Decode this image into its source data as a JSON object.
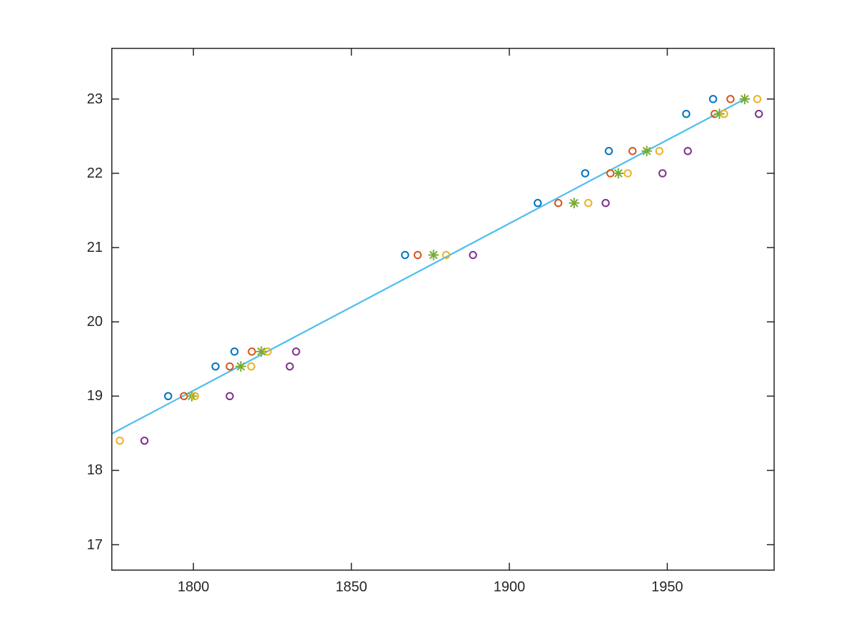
{
  "figure": {
    "background": "#ffffff",
    "title": ""
  },
  "chart_data": {
    "type": "scatter",
    "title": "",
    "xlabel": "",
    "ylabel": "",
    "xlim": [
      1774,
      1984
    ],
    "ylim": [
      16.65,
      23.69
    ],
    "xticks": [
      "1800",
      "1850",
      "1900",
      "1950"
    ],
    "xtick_values": [
      1800,
      1850,
      1900,
      1950
    ],
    "yticks": [
      "17",
      "18",
      "19",
      "20",
      "21",
      "22",
      "23"
    ],
    "ytick_values": [
      17,
      18,
      19,
      20,
      21,
      22,
      23
    ],
    "grid": false,
    "legend_position": "none",
    "axis_color": "#262626",
    "tick_length": 11,
    "y_levels": [
      18.4,
      19.0,
      19.4,
      19.6,
      20.9,
      21.6,
      22.0,
      22.3,
      22.8,
      23.0
    ],
    "series": [
      {
        "name": "series-1-blue-circles",
        "color": "#0072BD",
        "marker": "circle",
        "points": [
          [
            1792,
            19.0
          ],
          [
            1807,
            19.4
          ],
          [
            1813,
            19.6
          ],
          [
            1867,
            20.9
          ],
          [
            1909,
            21.6
          ],
          [
            1924,
            22.0
          ],
          [
            1931.5,
            22.3
          ],
          [
            1956,
            22.8
          ],
          [
            1964.5,
            23.0
          ]
        ]
      },
      {
        "name": "series-2-orange-circles",
        "color": "#D95319",
        "marker": "circle",
        "points": [
          [
            1797,
            19.0
          ],
          [
            1811.5,
            19.4
          ],
          [
            1818.5,
            19.6
          ],
          [
            1871,
            20.9
          ],
          [
            1915.5,
            21.6
          ],
          [
            1932,
            22.0
          ],
          [
            1939,
            22.3
          ],
          [
            1965,
            22.8
          ],
          [
            1970,
            23.0
          ]
        ]
      },
      {
        "name": "series-3-green-asterisks",
        "color": "#77AC30",
        "marker": "asterisk",
        "points": [
          [
            1799.5,
            19.0
          ],
          [
            1815,
            19.4
          ],
          [
            1821.5,
            19.6
          ],
          [
            1876,
            20.9
          ],
          [
            1920.5,
            21.6
          ],
          [
            1934.5,
            22.0
          ],
          [
            1943.5,
            22.3
          ],
          [
            1966.5,
            22.8
          ],
          [
            1974.5,
            23.0
          ]
        ]
      },
      {
        "name": "series-4-yellow-circles",
        "color": "#EDB120",
        "marker": "circle",
        "points": [
          [
            1776.7,
            18.4
          ],
          [
            1800.5,
            19.0
          ],
          [
            1818.3,
            19.4
          ],
          [
            1823.5,
            19.6
          ],
          [
            1880,
            20.9
          ],
          [
            1925,
            21.6
          ],
          [
            1937.5,
            22.0
          ],
          [
            1947.5,
            22.3
          ],
          [
            1968,
            22.8
          ],
          [
            1978.5,
            23.0
          ]
        ]
      },
      {
        "name": "series-5-purple-circles",
        "color": "#7E2F8E",
        "marker": "circle",
        "points": [
          [
            1784.5,
            18.4
          ],
          [
            1811.5,
            19.0
          ],
          [
            1830.5,
            19.4
          ],
          [
            1832.5,
            19.6
          ],
          [
            1888.5,
            20.9
          ],
          [
            1930.5,
            21.6
          ],
          [
            1948.5,
            22.0
          ],
          [
            1956.5,
            22.3
          ],
          [
            1979,
            22.8
          ]
        ]
      }
    ],
    "fit_line": {
      "name": "fit-line",
      "color": "#4DBEEE",
      "width": 2.2,
      "from": [
        1774,
        18.49
      ],
      "to": [
        1974.5,
        23.0
      ]
    },
    "marker_style": {
      "circle_radius": 4.7,
      "stroke_width": 2,
      "asterisk_half_straight": 6.5,
      "asterisk_half_diag": 4.6
    }
  }
}
